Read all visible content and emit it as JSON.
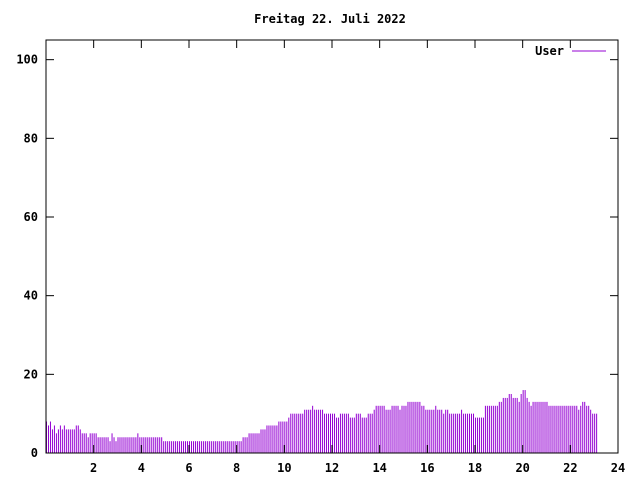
{
  "chart_data": {
    "type": "bar",
    "title": "Freitag 22. Juli 2022",
    "xlabel": "",
    "ylabel": "",
    "xlim": [
      0,
      24
    ],
    "ylim": [
      0,
      105
    ],
    "xticks": [
      2,
      4,
      6,
      8,
      10,
      12,
      14,
      16,
      18,
      20,
      22,
      24
    ],
    "yticks": [
      0,
      20,
      40,
      60,
      80,
      100
    ],
    "legend_position": "top-right",
    "grid": false,
    "bar_color": "#9400d3",
    "series": [
      {
        "name": "User",
        "interval_hours": 0.08333,
        "values": [
          8,
          7,
          8,
          6,
          7,
          5,
          6,
          7,
          6,
          7,
          6,
          6,
          6,
          6,
          6,
          7,
          7,
          6,
          5,
          5,
          5,
          4,
          5,
          5,
          5,
          5,
          4,
          4,
          4,
          4,
          4,
          4,
          3,
          5,
          4,
          3,
          4,
          4,
          4,
          4,
          4,
          4,
          4,
          4,
          4,
          4,
          5,
          4,
          4,
          4,
          4,
          4,
          4,
          4,
          4,
          4,
          4,
          4,
          4,
          3,
          3,
          3,
          3,
          3,
          3,
          3,
          3,
          3,
          3,
          3,
          3,
          3,
          3,
          3,
          3,
          3,
          3,
          3,
          3,
          3,
          3,
          3,
          3,
          3,
          3,
          3,
          3,
          3,
          3,
          3,
          3,
          3,
          3,
          3,
          3,
          3,
          3,
          3,
          3,
          4,
          4,
          4,
          5,
          5,
          5,
          5,
          5,
          5,
          6,
          6,
          6,
          7,
          7,
          7,
          7,
          7,
          7,
          8,
          8,
          8,
          8,
          8,
          9,
          10,
          10,
          10,
          10,
          10,
          10,
          10,
          11,
          11,
          11,
          11,
          12,
          11,
          11,
          11,
          11,
          11,
          10,
          10,
          10,
          10,
          10,
          10,
          9,
          9,
          10,
          10,
          10,
          10,
          10,
          9,
          9,
          9,
          10,
          10,
          10,
          9,
          9,
          9,
          10,
          10,
          10,
          11,
          12,
          12,
          12,
          12,
          12,
          11,
          11,
          11,
          12,
          12,
          12,
          12,
          11,
          12,
          12,
          12,
          13,
          13,
          13,
          13,
          13,
          13,
          13,
          12,
          12,
          11,
          11,
          11,
          11,
          11,
          12,
          11,
          11,
          11,
          10,
          11,
          11,
          10,
          10,
          10,
          10,
          10,
          10,
          11,
          10,
          10,
          10,
          10,
          10,
          10,
          9,
          9,
          9,
          9,
          9,
          12,
          12,
          12,
          12,
          12,
          12,
          12,
          13,
          13,
          14,
          14,
          14,
          15,
          15,
          14,
          14,
          14,
          13,
          15,
          16,
          16,
          14,
          13,
          12,
          13,
          13,
          13,
          13,
          13,
          13,
          13,
          13,
          12,
          12,
          12,
          12,
          12,
          12,
          12,
          12,
          12,
          12,
          12,
          12,
          12,
          12,
          12,
          11,
          12,
          13,
          13,
          12,
          12,
          11,
          10,
          10,
          10
        ]
      }
    ]
  }
}
